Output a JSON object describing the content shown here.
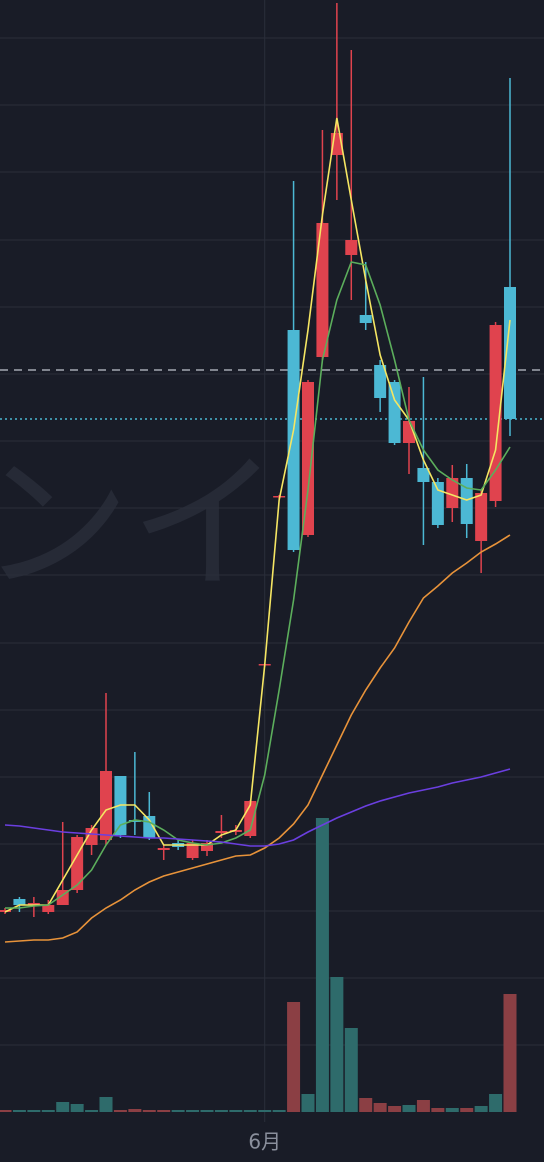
{
  "chart_data": {
    "type": "candlestick",
    "watermark": "ンイ",
    "categories": [
      null,
      null,
      null,
      null,
      null,
      null,
      null,
      null,
      null,
      null,
      null,
      null,
      null,
      null,
      null,
      null,
      null,
      null,
      "6月",
      null,
      null,
      null,
      null,
      null,
      null,
      null,
      null,
      null,
      null,
      null,
      null,
      null,
      null,
      null,
      null,
      null
    ],
    "open": [
      288,
      301,
      295,
      288,
      295,
      310,
      355,
      360,
      424,
      380,
      384,
      350,
      357,
      342,
      349,
      367,
      368,
      364,
      535,
      703,
      870,
      665,
      843,
      1045,
      945,
      885,
      835,
      818,
      757,
      732,
      718,
      692,
      722,
      659,
      699,
      913
    ],
    "high": [
      292,
      303,
      303,
      300,
      378,
      365,
      375,
      507,
      424,
      448,
      408,
      355,
      360,
      360,
      360,
      385,
      375,
      400,
      537,
      705,
      1019,
      820,
      1070,
      1197,
      1150,
      938,
      840,
      820,
      813,
      823,
      722,
      735,
      736,
      710,
      878,
      1122
    ],
    "low": [
      286,
      288,
      283,
      286,
      295,
      307,
      345,
      355,
      362,
      365,
      360,
      340,
      350,
      340,
      344,
      362,
      365,
      362,
      533,
      701,
      648,
      663,
      840,
      1000,
      900,
      870,
      788,
      755,
      726,
      655,
      672,
      678,
      662,
      627,
      693,
      764
    ],
    "close": [
      290,
      295,
      297,
      295,
      310,
      363,
      372,
      429,
      365,
      378,
      362,
      352,
      353,
      357,
      357,
      369,
      370,
      399,
      536,
      704,
      650,
      818,
      977,
      1067,
      960,
      877,
      802,
      757,
      779,
      718,
      675,
      722,
      676,
      707,
      875,
      781
    ],
    "up_color": "#e0434e",
    "down_color": "#4cb8d4",
    "ylim": [
      38,
      1200
    ],
    "yticks": [
      1162,
      1095,
      1028,
      960,
      893,
      826,
      759,
      692,
      625,
      557,
      490,
      423,
      356,
      289,
      222,
      155
    ],
    "grid": true,
    "hlines": [
      {
        "value": 830,
        "color": "#a4a8b2",
        "style": "dashed"
      },
      {
        "value": 781,
        "color": "#4cb8d4",
        "style": "dotted"
      }
    ],
    "series": [
      {
        "color": "#f5e663",
        "values": [
          288,
          295,
          295,
          295,
          320,
          345,
          370,
          390,
          395,
          395,
          380,
          355,
          355,
          355,
          355,
          365,
          370,
          395,
          535,
          700,
          770,
          870,
          985,
          1082,
          1000,
          920,
          845,
          800,
          780,
          740,
          710,
          705,
          700,
          705,
          750,
          880
        ]
      },
      {
        "color": "#5cae5c",
        "values": [
          292,
          292,
          294,
          295,
          305,
          315,
          330,
          355,
          375,
          380,
          378,
          370,
          360,
          357,
          355,
          357,
          362,
          370,
          425,
          510,
          600,
          710,
          840,
          900,
          938,
          935,
          895,
          840,
          780,
          750,
          730,
          720,
          712,
          710,
          730,
          753
        ]
      },
      {
        "color": "#e8933a",
        "values": [
          258,
          259,
          260,
          260,
          262,
          268,
          282,
          292,
          300,
          310,
          318,
          324,
          328,
          332,
          336,
          340,
          344,
          345,
          352,
          362,
          376,
          395,
          425,
          455,
          485,
          510,
          532,
          552,
          578,
          602,
          614,
          627,
          637,
          648,
          656,
          665
        ]
      },
      {
        "color": "#6b3fe0",
        "values": [
          375,
          374,
          372,
          370,
          368,
          367,
          366,
          365,
          364,
          363,
          362,
          362,
          361,
          360,
          359,
          358,
          356,
          354,
          354,
          356,
          360,
          368,
          375,
          382,
          388,
          394,
          399,
          403,
          407,
          410,
          413,
          417,
          420,
          423,
          427,
          431
        ]
      }
    ],
    "volume": {
      "values": [
        2,
        2,
        2,
        2,
        10,
        8,
        2,
        15,
        2,
        3,
        2,
        2,
        2,
        2,
        2,
        2,
        2,
        2,
        2,
        2,
        110,
        18,
        294,
        135,
        84,
        14,
        9,
        6,
        7,
        12,
        4,
        4,
        4,
        6,
        18,
        118
      ],
      "colors": [
        "#8b3f44",
        "#2e6b6b",
        "#2e6b6b",
        "#2e6b6b",
        "#2e6b6b",
        "#2e6b6b",
        "#2e6b6b",
        "#2e6b6b",
        "#8b3f44",
        "#8b3f44",
        "#8b3f44",
        "#8b3f44",
        "#2e6b6b",
        "#2e6b6b",
        "#2e6b6b",
        "#2e6b6b",
        "#2e6b6b",
        "#2e6b6b",
        "#2e6b6b",
        "#2e6b6b",
        "#8b3f44",
        "#2e6b6b",
        "#2e6b6b",
        "#2e6b6b",
        "#2e6b6b",
        "#8b3f44",
        "#8b3f44",
        "#8b3f44",
        "#2e6b6b",
        "#8b3f44",
        "#8b3f44",
        "#2e6b6b",
        "#8b3f44",
        "#2e6b6b",
        "#2e6b6b",
        "#8b3f44"
      ],
      "ylim": [
        0,
        300
      ]
    }
  }
}
